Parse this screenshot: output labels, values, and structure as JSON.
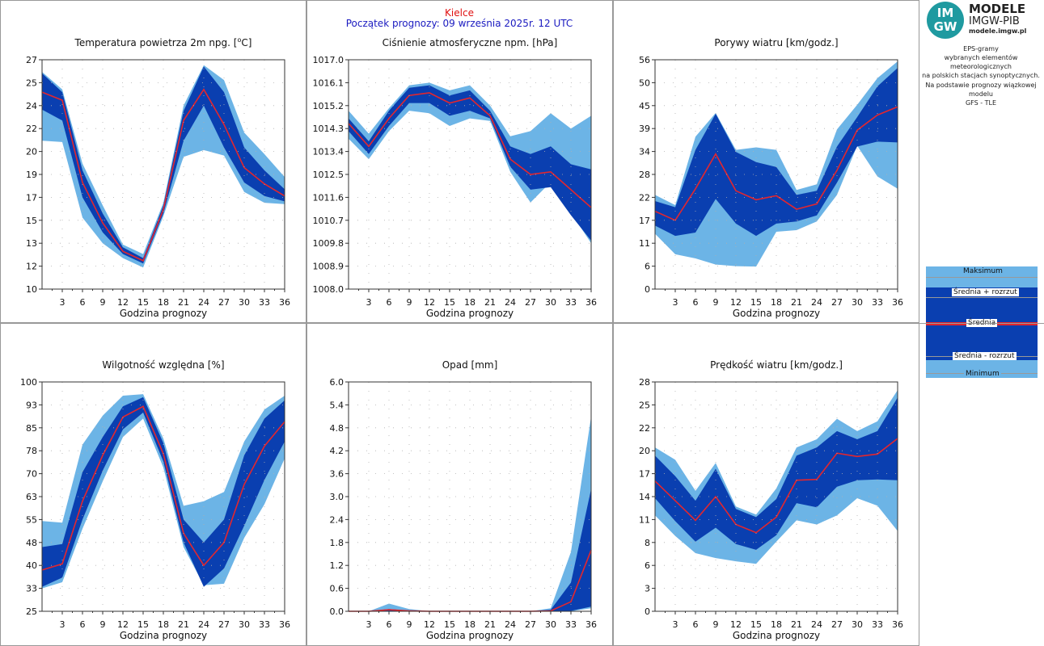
{
  "header": {
    "station": "Kielce",
    "run": "Początek prognozy: 09 września 2025r. 12 UTC"
  },
  "logo": {
    "circle_top": "IM",
    "circle_bottom": "GW",
    "title": "MODELE",
    "subtitle": "IMGW-PIB",
    "url": "modele.imgw.pl"
  },
  "description": {
    "lines": [
      "EPS-gramy",
      "wybranych elementów meteorologicznych",
      "na polskich stacjach  synoptycznych."
    ],
    "model_lines": [
      "Na podstawie prognozy wiązkowej modelu",
      "GFS - TLE"
    ]
  },
  "legend": {
    "max": "Maksimum",
    "mean_plus": "Średnia + rozrzut",
    "mean": "Średnia",
    "mean_minus": "Średnia - rozrzut",
    "min": "Minimum"
  },
  "colors": {
    "light": "#6cb4e6",
    "dark": "#0a3fb0",
    "mean": "#e3262e",
    "grid": "#b0b0b0"
  },
  "x_label": "Godzina prognozy",
  "chart_data": [
    {
      "id": "temp",
      "type": "area",
      "title": "Temperatura powietrza 2m npg. [",
      "title_sup": "o",
      "title_end": "C]",
      "x": [
        0,
        3,
        6,
        9,
        12,
        15,
        18,
        21,
        24,
        27,
        30,
        33,
        36
      ],
      "ylim": [
        10,
        27
      ],
      "yticks": [
        "10",
        "12",
        "13",
        "15",
        "17",
        "19",
        "20",
        "22",
        "24",
        "25",
        "27"
      ],
      "min": [
        21.0,
        20.9,
        15.3,
        13.4,
        12.3,
        11.6,
        15.4,
        19.8,
        20.3,
        19.9,
        17.2,
        16.4,
        16.3
      ],
      "lower": [
        23.3,
        22.5,
        16.8,
        14.2,
        12.6,
        11.9,
        15.6,
        21.0,
        23.6,
        20.5,
        17.9,
        16.9,
        16.5
      ],
      "mean": [
        24.6,
        24.0,
        17.9,
        14.9,
        12.8,
        12.1,
        15.9,
        22.5,
        24.8,
        22.2,
        19.0,
        17.8,
        16.9
      ],
      "upper": [
        26.0,
        24.6,
        18.8,
        15.6,
        13.1,
        12.3,
        16.2,
        23.2,
        26.5,
        24.6,
        20.5,
        18.8,
        17.4
      ],
      "max": [
        26.1,
        24.8,
        19.3,
        16.2,
        13.3,
        12.6,
        16.4,
        23.6,
        26.6,
        25.5,
        21.6,
        20.0,
        18.3
      ]
    },
    {
      "id": "press",
      "type": "area",
      "title": "Ciśnienie atmosferyczne npm. [hPa]",
      "x": [
        0,
        3,
        6,
        9,
        12,
        15,
        18,
        21,
        24,
        27,
        30,
        33,
        36
      ],
      "ylim": [
        1008.0,
        1017.0
      ],
      "yticks": [
        "1008.0",
        "1008.9",
        "1009.8",
        "1010.7",
        "1011.6",
        "1012.5",
        "1013.4",
        "1014.3",
        "1015.2",
        "1016.1",
        "1017.0"
      ],
      "min": [
        1013.9,
        1013.1,
        1014.2,
        1015.0,
        1014.9,
        1014.4,
        1014.7,
        1014.6,
        1012.6,
        1011.4,
        1012.2,
        1011.0,
        1009.8
      ],
      "lower": [
        1014.2,
        1013.3,
        1014.4,
        1015.3,
        1015.3,
        1014.8,
        1015.0,
        1014.7,
        1012.8,
        1011.9,
        1012.0,
        1010.9,
        1009.9
      ],
      "mean": [
        1014.5,
        1013.6,
        1014.7,
        1015.6,
        1015.7,
        1015.3,
        1015.5,
        1014.8,
        1013.1,
        1012.5,
        1012.6,
        1011.9,
        1011.2
      ],
      "upper": [
        1014.7,
        1013.8,
        1015.0,
        1015.9,
        1016.0,
        1015.6,
        1015.8,
        1015.0,
        1013.6,
        1013.3,
        1013.6,
        1012.9,
        1012.7
      ],
      "max": [
        1015.0,
        1014.1,
        1015.1,
        1016.0,
        1016.1,
        1015.8,
        1016.0,
        1015.2,
        1014.0,
        1014.2,
        1014.9,
        1014.3,
        1014.8
      ]
    },
    {
      "id": "gust",
      "type": "area",
      "title": "Porywy wiatru [km/godz.]",
      "x": [
        0,
        3,
        6,
        9,
        12,
        15,
        18,
        21,
        24,
        27,
        30,
        33,
        36
      ],
      "ylim": [
        0,
        56
      ],
      "yticks": [
        "0",
        "6",
        "11",
        "17",
        "22",
        "28",
        "34",
        "39",
        "45",
        "50",
        "56"
      ],
      "min": [
        13.5,
        8.5,
        7.5,
        6.0,
        5.6,
        5.5,
        14.0,
        14.4,
        16.5,
        23.0,
        35.0,
        27.5,
        24.5
      ],
      "lower": [
        15.5,
        13.0,
        13.8,
        22.0,
        16.0,
        13.0,
        16.0,
        16.5,
        18.0,
        26.0,
        34.8,
        36.0,
        35.8
      ],
      "mean": [
        19.0,
        16.8,
        24.5,
        33.0,
        24.0,
        21.8,
        22.8,
        19.5,
        20.8,
        29.0,
        38.8,
        42.5,
        44.5
      ],
      "upper": [
        21.5,
        20.0,
        34.0,
        42.8,
        33.5,
        31.0,
        29.8,
        23.0,
        24.0,
        34.8,
        42.0,
        49.5,
        54.0
      ],
      "max": [
        23.0,
        20.5,
        37.2,
        43.0,
        34.0,
        34.6,
        34.0,
        24.2,
        25.6,
        39.0,
        45.0,
        51.5,
        55.6
      ]
    },
    {
      "id": "rh",
      "type": "area",
      "title": "Wilgotność względna [%]",
      "x": [
        0,
        3,
        6,
        9,
        12,
        15,
        18,
        21,
        24,
        27,
        30,
        33,
        36
      ],
      "ylim": [
        25,
        100
      ],
      "yticks": [
        "25",
        "33",
        "40",
        "48",
        "55",
        "63",
        "70",
        "78",
        "85",
        "93",
        "100"
      ],
      "min": [
        32.5,
        34.5,
        52.0,
        67.5,
        82.0,
        88.0,
        72.0,
        46.0,
        33.5,
        34.0,
        49.0,
        60.0,
        75.0
      ],
      "lower": [
        33.0,
        36.0,
        55.0,
        71.0,
        84.5,
        90.0,
        74.0,
        47.5,
        33.0,
        39.0,
        53.0,
        68.0,
        80.5
      ],
      "mean": [
        38.5,
        40.5,
        61.0,
        76.0,
        88.5,
        92.0,
        76.5,
        50.5,
        40.0,
        47.5,
        66.5,
        79.0,
        87.0
      ],
      "upper": [
        46.0,
        47.0,
        70.5,
        82.0,
        92.0,
        95.0,
        80.0,
        55.0,
        47.5,
        55.0,
        76.0,
        88.0,
        94.0
      ],
      "max": [
        54.5,
        54.0,
        79.5,
        89.0,
        95.5,
        96.0,
        81.5,
        59.5,
        61.0,
        64.0,
        80.5,
        91.0,
        95.5
      ]
    },
    {
      "id": "precip",
      "type": "area",
      "title": "Opad [mm]",
      "x": [
        0,
        3,
        6,
        9,
        12,
        15,
        18,
        21,
        24,
        27,
        30,
        33,
        36
      ],
      "ylim": [
        0.0,
        6.0
      ],
      "yticks": [
        "0.0",
        "0.6",
        "1.2",
        "1.8",
        "2.4",
        "3.0",
        "3.6",
        "4.2",
        "4.8",
        "5.4",
        "6.0"
      ],
      "min": [
        0,
        0,
        0,
        0,
        0,
        0,
        0,
        0,
        0,
        0,
        0,
        0,
        0.08
      ],
      "lower": [
        0,
        0,
        0,
        0,
        0,
        0,
        0,
        0,
        0,
        0,
        0,
        0.01,
        0.12
      ],
      "mean": [
        0,
        0,
        0.04,
        0.01,
        0,
        0,
        0,
        0,
        0,
        0,
        0.01,
        0.25,
        1.6
      ],
      "upper": [
        0,
        0,
        0.06,
        0.02,
        0,
        0,
        0,
        0,
        0,
        0,
        0.04,
        0.75,
        3.2
      ],
      "max": [
        0,
        0,
        0.2,
        0.06,
        0,
        0,
        0,
        0,
        0,
        0,
        0.08,
        1.55,
        5.1
      ]
    },
    {
      "id": "wind",
      "type": "area",
      "title": "Prędkość wiatru [km/godz.]",
      "x": [
        0,
        3,
        6,
        9,
        12,
        15,
        18,
        21,
        24,
        27,
        30,
        33,
        36
      ],
      "ylim": [
        0,
        28
      ],
      "yticks": [
        "0",
        "3",
        "6",
        "8",
        "11",
        "14",
        "17",
        "20",
        "22",
        "25",
        "28"
      ],
      "min": [
        11.7,
        9.2,
        7.1,
        6.5,
        6.1,
        5.8,
        8.5,
        11.1,
        10.6,
        11.7,
        13.8,
        12.9,
        9.8
      ],
      "lower": [
        13.8,
        11.0,
        8.5,
        10.2,
        8.2,
        7.5,
        9.3,
        13.2,
        12.7,
        15.2,
        16.0,
        16.1,
        16.0
      ],
      "mean": [
        15.9,
        13.5,
        11.1,
        14.0,
        10.6,
        9.6,
        11.5,
        16.0,
        16.1,
        19.3,
        18.9,
        19.2,
        21.1
      ],
      "upper": [
        19.0,
        16.5,
        13.5,
        17.4,
        12.5,
        11.5,
        13.7,
        19.0,
        20.0,
        22.0,
        21.0,
        22.0,
        26.1
      ],
      "max": [
        20.0,
        18.5,
        14.7,
        18.1,
        12.8,
        11.8,
        15.0,
        20.0,
        21.0,
        23.5,
        22.0,
        23.2,
        27.0
      ]
    }
  ]
}
